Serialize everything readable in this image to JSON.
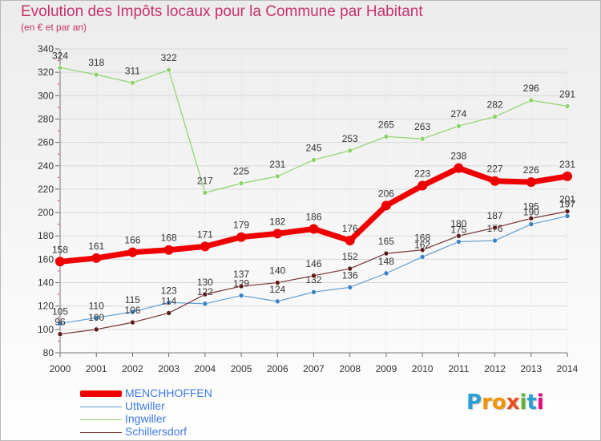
{
  "title": "Evolution des Impôts locaux pour la Commune par Habitant",
  "subtitle": "(en € et par an)",
  "logo": {
    "letters": [
      "P",
      "r",
      "o",
      "x",
      "i",
      "t",
      "i"
    ],
    "colors": [
      "#2a9fd6",
      "#f29400",
      "#f29400",
      "#e94e1b",
      "#5fb43a",
      "#2a9fd6",
      "#e5007d"
    ]
  },
  "chart_data": {
    "type": "line",
    "x": [
      "2000",
      "2001",
      "2002",
      "2003",
      "2004",
      "2005",
      "2006",
      "2007",
      "2008",
      "2009",
      "2010",
      "2011",
      "2012",
      "2013",
      "2014"
    ],
    "ylim": [
      80,
      340
    ],
    "yticks": [
      80,
      100,
      120,
      140,
      160,
      180,
      200,
      220,
      240,
      260,
      280,
      300,
      320,
      340
    ],
    "series": [
      {
        "name": "Ingwiller",
        "color": "#8ed36a",
        "marker": "#8ed36a",
        "width": 1.2,
        "values": [
          324,
          318,
          311,
          322,
          217,
          225,
          231,
          245,
          253,
          265,
          263,
          274,
          282,
          296,
          291
        ],
        "labels": [
          "324",
          "318",
          "311",
          "322",
          "217",
          "225",
          "231",
          "245",
          "253",
          "265",
          "263",
          "274",
          "282",
          "296",
          "291"
        ]
      },
      {
        "name": "Uttwiller",
        "color": "#5f9fd3",
        "marker": "#3b82c4",
        "width": 1.2,
        "values": [
          105,
          110,
          115,
          123,
          122,
          129,
          124,
          132,
          136,
          148,
          162,
          175,
          176,
          190,
          197
        ],
        "labels": [
          "105",
          "110",
          "115",
          "123",
          "122",
          "129",
          "124",
          "132",
          "136",
          "148",
          "162",
          "175",
          "176",
          "190",
          "197"
        ]
      },
      {
        "name": "Schillersdorf",
        "color": "#7a3333",
        "marker": "#5c1a1a",
        "width": 1.2,
        "values": [
          96,
          100,
          106,
          114,
          130,
          137,
          140,
          146,
          152,
          165,
          168,
          180,
          187,
          195,
          201
        ],
        "labels": [
          "96",
          "100",
          "106",
          "114",
          "130",
          "137",
          "140",
          "146",
          "152",
          "165",
          "168",
          "180",
          "187",
          "195",
          "201"
        ]
      },
      {
        "name": "MENCHHOFFEN",
        "color": "#ee0000",
        "marker": "#ee0000",
        "width": 7,
        "values": [
          158,
          161,
          166,
          168,
          171,
          179,
          182,
          186,
          176,
          206,
          223,
          238,
          227,
          226,
          231
        ],
        "labels": [
          "158",
          "161",
          "166",
          "168",
          "171",
          "179",
          "182",
          "186",
          "176",
          "206",
          "223",
          "238",
          "227",
          "226",
          "231"
        ]
      }
    ]
  },
  "legend": [
    {
      "label": "MENCHHOFFEN",
      "color": "#ee0000",
      "thick": true
    },
    {
      "label": "Uttwiller",
      "color": "#5f9fd3",
      "thick": false
    },
    {
      "label": "Ingwiller",
      "color": "#8ed36a",
      "thick": false
    },
    {
      "label": "Schillersdorf",
      "color": "#7a3333",
      "thick": false
    }
  ]
}
